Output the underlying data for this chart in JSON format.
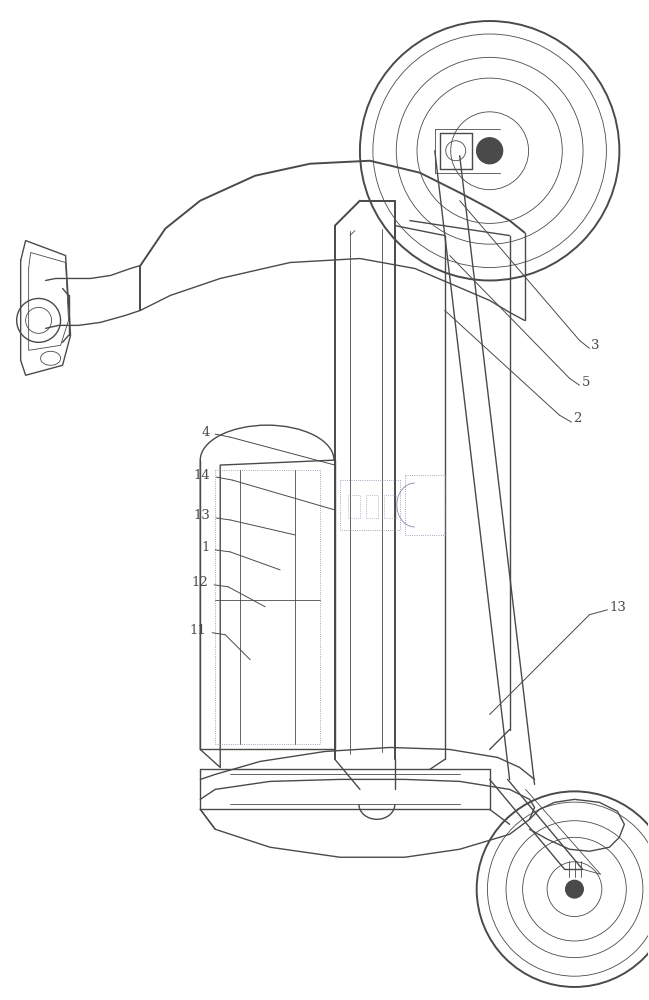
{
  "bg_color": "#ffffff",
  "lc": "#4a4a4a",
  "dc": "#8888aa",
  "lc_thin": "#6a6a6a",
  "lw": 1.0,
  "lw_thin": 0.6,
  "lw_thick": 1.4,
  "fig_w": 6.49,
  "fig_h": 10.0,
  "label_fs": 9.5
}
